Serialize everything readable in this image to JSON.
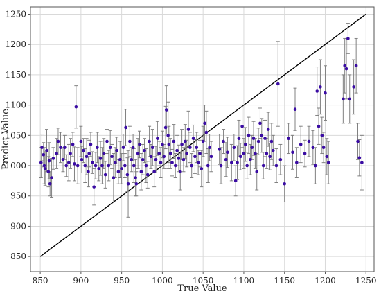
{
  "chart_data": {
    "type": "scatter",
    "title": "",
    "xlabel": "True Value",
    "ylabel": "Predict Value",
    "xlim": [
      838,
      1260
    ],
    "ylim": [
      825,
      1262
    ],
    "xticks": [
      850,
      900,
      950,
      1000,
      1050,
      1100,
      1150,
      1200,
      1250
    ],
    "yticks": [
      850,
      900,
      950,
      1000,
      1050,
      1100,
      1150,
      1200,
      1250
    ],
    "grid": true,
    "legend": "none",
    "colors": {
      "marker": "#3a0ca3",
      "errorbar": "#808080",
      "reference_line": "#000000",
      "grid": "#d9d9d9"
    },
    "reference_line": {
      "x": [
        850,
        1250
      ],
      "y": [
        850,
        1250
      ]
    },
    "series": [
      {
        "points": [
          [
            851,
            1005,
            25
          ],
          [
            852,
            1030,
            22
          ],
          [
            854,
            1018,
            20
          ],
          [
            855,
            1000,
            30
          ],
          [
            856,
            995,
            28
          ],
          [
            858,
            1025,
            35
          ],
          [
            860,
            990,
            25
          ],
          [
            861,
            1008,
            30
          ],
          [
            862,
            970,
            20
          ],
          [
            864,
            980,
            32
          ],
          [
            866,
            1012,
            18
          ],
          [
            870,
            1020,
            25
          ],
          [
            872,
            1040,
            22
          ],
          [
            875,
            1030,
            25
          ],
          [
            878,
            1010,
            20
          ],
          [
            880,
            1030,
            20
          ],
          [
            882,
            1000,
            18
          ],
          [
            885,
            1005,
            30
          ],
          [
            887,
            1020,
            25
          ],
          [
            890,
            1035,
            20
          ],
          [
            892,
            1003,
            28
          ],
          [
            894,
            1097,
            35
          ],
          [
            896,
            1000,
            30
          ],
          [
            900,
            1040,
            25
          ],
          [
            901,
            1010,
            22
          ],
          [
            903,
            1025,
            20
          ],
          [
            905,
            1000,
            28
          ],
          [
            907,
            1015,
            30
          ],
          [
            909,
            990,
            25
          ],
          [
            910,
            1020,
            22
          ],
          [
            912,
            1035,
            20
          ],
          [
            914,
            1005,
            18
          ],
          [
            916,
            965,
            30
          ],
          [
            918,
            1000,
            22
          ],
          [
            920,
            1030,
            25
          ],
          [
            922,
            995,
            20
          ],
          [
            924,
            1012,
            28
          ],
          [
            926,
            1000,
            30
          ],
          [
            928,
            1020,
            25
          ],
          [
            930,
            985,
            22
          ],
          [
            932,
            1040,
            20
          ],
          [
            934,
            1000,
            25
          ],
          [
            936,
            1030,
            28
          ],
          [
            938,
            1015,
            20
          ],
          [
            940,
            980,
            40
          ],
          [
            942,
            1005,
            25
          ],
          [
            944,
            1025,
            22
          ],
          [
            946,
            990,
            20
          ],
          [
            948,
            1010,
            30
          ],
          [
            950,
            995,
            25
          ],
          [
            952,
            1030,
            22
          ],
          [
            954,
            1000,
            20
          ],
          [
            955,
            1063,
            30
          ],
          [
            957,
            985,
            28
          ],
          [
            958,
            970,
            55
          ],
          [
            960,
            1040,
            25
          ],
          [
            962,
            1010,
            20
          ],
          [
            964,
            1030,
            22
          ],
          [
            965,
            1000,
            28
          ],
          [
            967,
            980,
            30
          ],
          [
            968,
            970,
            20
          ],
          [
            970,
            1020,
            25
          ],
          [
            972,
            1035,
            22
          ],
          [
            974,
            990,
            30
          ],
          [
            976,
            1010,
            25
          ],
          [
            978,
            1025,
            20
          ],
          [
            980,
            1000,
            28
          ],
          [
            982,
            985,
            22
          ],
          [
            984,
            1040,
            25
          ],
          [
            986,
            1015,
            20
          ],
          [
            988,
            1030,
            30
          ],
          [
            990,
            990,
            25
          ],
          [
            992,
            1010,
            22
          ],
          [
            994,
            1045,
            28
          ],
          [
            996,
            1020,
            20
          ],
          [
            998,
            1005,
            25
          ],
          [
            1000,
            1035,
            22
          ],
          [
            1002,
            1015,
            20
          ],
          [
            1004,
            1063,
            35
          ],
          [
            1005,
            1092,
            40
          ],
          [
            1007,
            1050,
            55
          ],
          [
            1008,
            1035,
            30
          ],
          [
            1010,
            1020,
            25
          ],
          [
            1012,
            1005,
            22
          ],
          [
            1014,
            1040,
            28
          ],
          [
            1016,
            1000,
            20
          ],
          [
            1018,
            1025,
            25
          ],
          [
            1020,
            1012,
            22
          ],
          [
            1022,
            990,
            30
          ],
          [
            1024,
            1035,
            25
          ],
          [
            1026,
            1010,
            20
          ],
          [
            1028,
            1040,
            28
          ],
          [
            1030,
            1020,
            22
          ],
          [
            1032,
            1060,
            30
          ],
          [
            1034,
            1030,
            25
          ],
          [
            1036,
            1000,
            20
          ],
          [
            1038,
            1045,
            22
          ],
          [
            1040,
            1015,
            28
          ],
          [
            1042,
            1030,
            25
          ],
          [
            1044,
            1005,
            20
          ],
          [
            1046,
            1020,
            22
          ],
          [
            1048,
            995,
            30
          ],
          [
            1050,
            1040,
            25
          ],
          [
            1052,
            1070,
            30
          ],
          [
            1054,
            1055,
            35
          ],
          [
            1056,
            1000,
            28
          ],
          [
            1058,
            1030,
            22
          ],
          [
            1060,
            1015,
            25
          ],
          [
            1070,
            1027,
            25
          ],
          [
            1072,
            1000,
            30
          ],
          [
            1075,
            1040,
            20
          ],
          [
            1078,
            1010,
            28
          ],
          [
            1080,
            1022,
            25
          ],
          [
            1085,
            1005,
            30
          ],
          [
            1088,
            1030,
            22
          ],
          [
            1090,
            975,
            25
          ],
          [
            1092,
            1005,
            28
          ],
          [
            1094,
            1045,
            30
          ],
          [
            1096,
            1015,
            22
          ],
          [
            1098,
            1065,
            35
          ],
          [
            1100,
            1020,
            25
          ],
          [
            1102,
            1035,
            28
          ],
          [
            1104,
            1000,
            22
          ],
          [
            1106,
            1050,
            30
          ],
          [
            1108,
            1010,
            25
          ],
          [
            1110,
            1030,
            20
          ],
          [
            1112,
            1045,
            28
          ],
          [
            1114,
            1020,
            25
          ],
          [
            1116,
            990,
            30
          ],
          [
            1118,
            1040,
            22
          ],
          [
            1120,
            1070,
            25
          ],
          [
            1122,
            1050,
            28
          ],
          [
            1124,
            1000,
            22
          ],
          [
            1126,
            1045,
            30
          ],
          [
            1128,
            1020,
            25
          ],
          [
            1130,
            1060,
            28
          ],
          [
            1132,
            1015,
            22
          ],
          [
            1134,
            1040,
            30
          ],
          [
            1136,
            1025,
            25
          ],
          [
            1140,
            1000,
            28
          ],
          [
            1142,
            1135,
            70
          ],
          [
            1145,
            1010,
            25
          ],
          [
            1150,
            970,
            30
          ],
          [
            1155,
            1045,
            25
          ],
          [
            1160,
            1022,
            28
          ],
          [
            1163,
            1093,
            35
          ],
          [
            1165,
            1005,
            25
          ],
          [
            1170,
            1035,
            30
          ],
          [
            1175,
            1020,
            22
          ],
          [
            1180,
            1040,
            25
          ],
          [
            1185,
            1030,
            28
          ],
          [
            1188,
            1000,
            30
          ],
          [
            1190,
            1123,
            40
          ],
          [
            1192,
            1065,
            30
          ],
          [
            1194,
            1130,
            45
          ],
          [
            1196,
            1050,
            30
          ],
          [
            1198,
            1030,
            25
          ],
          [
            1200,
            1120,
            45
          ],
          [
            1202,
            1015,
            30
          ],
          [
            1204,
            1005,
            35
          ],
          [
            1222,
            1110,
            40
          ],
          [
            1224,
            1165,
            45
          ],
          [
            1226,
            1160,
            50
          ],
          [
            1228,
            1210,
            25
          ],
          [
            1230,
            1110,
            40
          ],
          [
            1235,
            1130,
            45
          ],
          [
            1238,
            1165,
            45
          ],
          [
            1240,
            1040,
            30
          ],
          [
            1242,
            1013,
            30
          ],
          [
            1245,
            1005,
            45
          ]
        ]
      }
    ]
  }
}
